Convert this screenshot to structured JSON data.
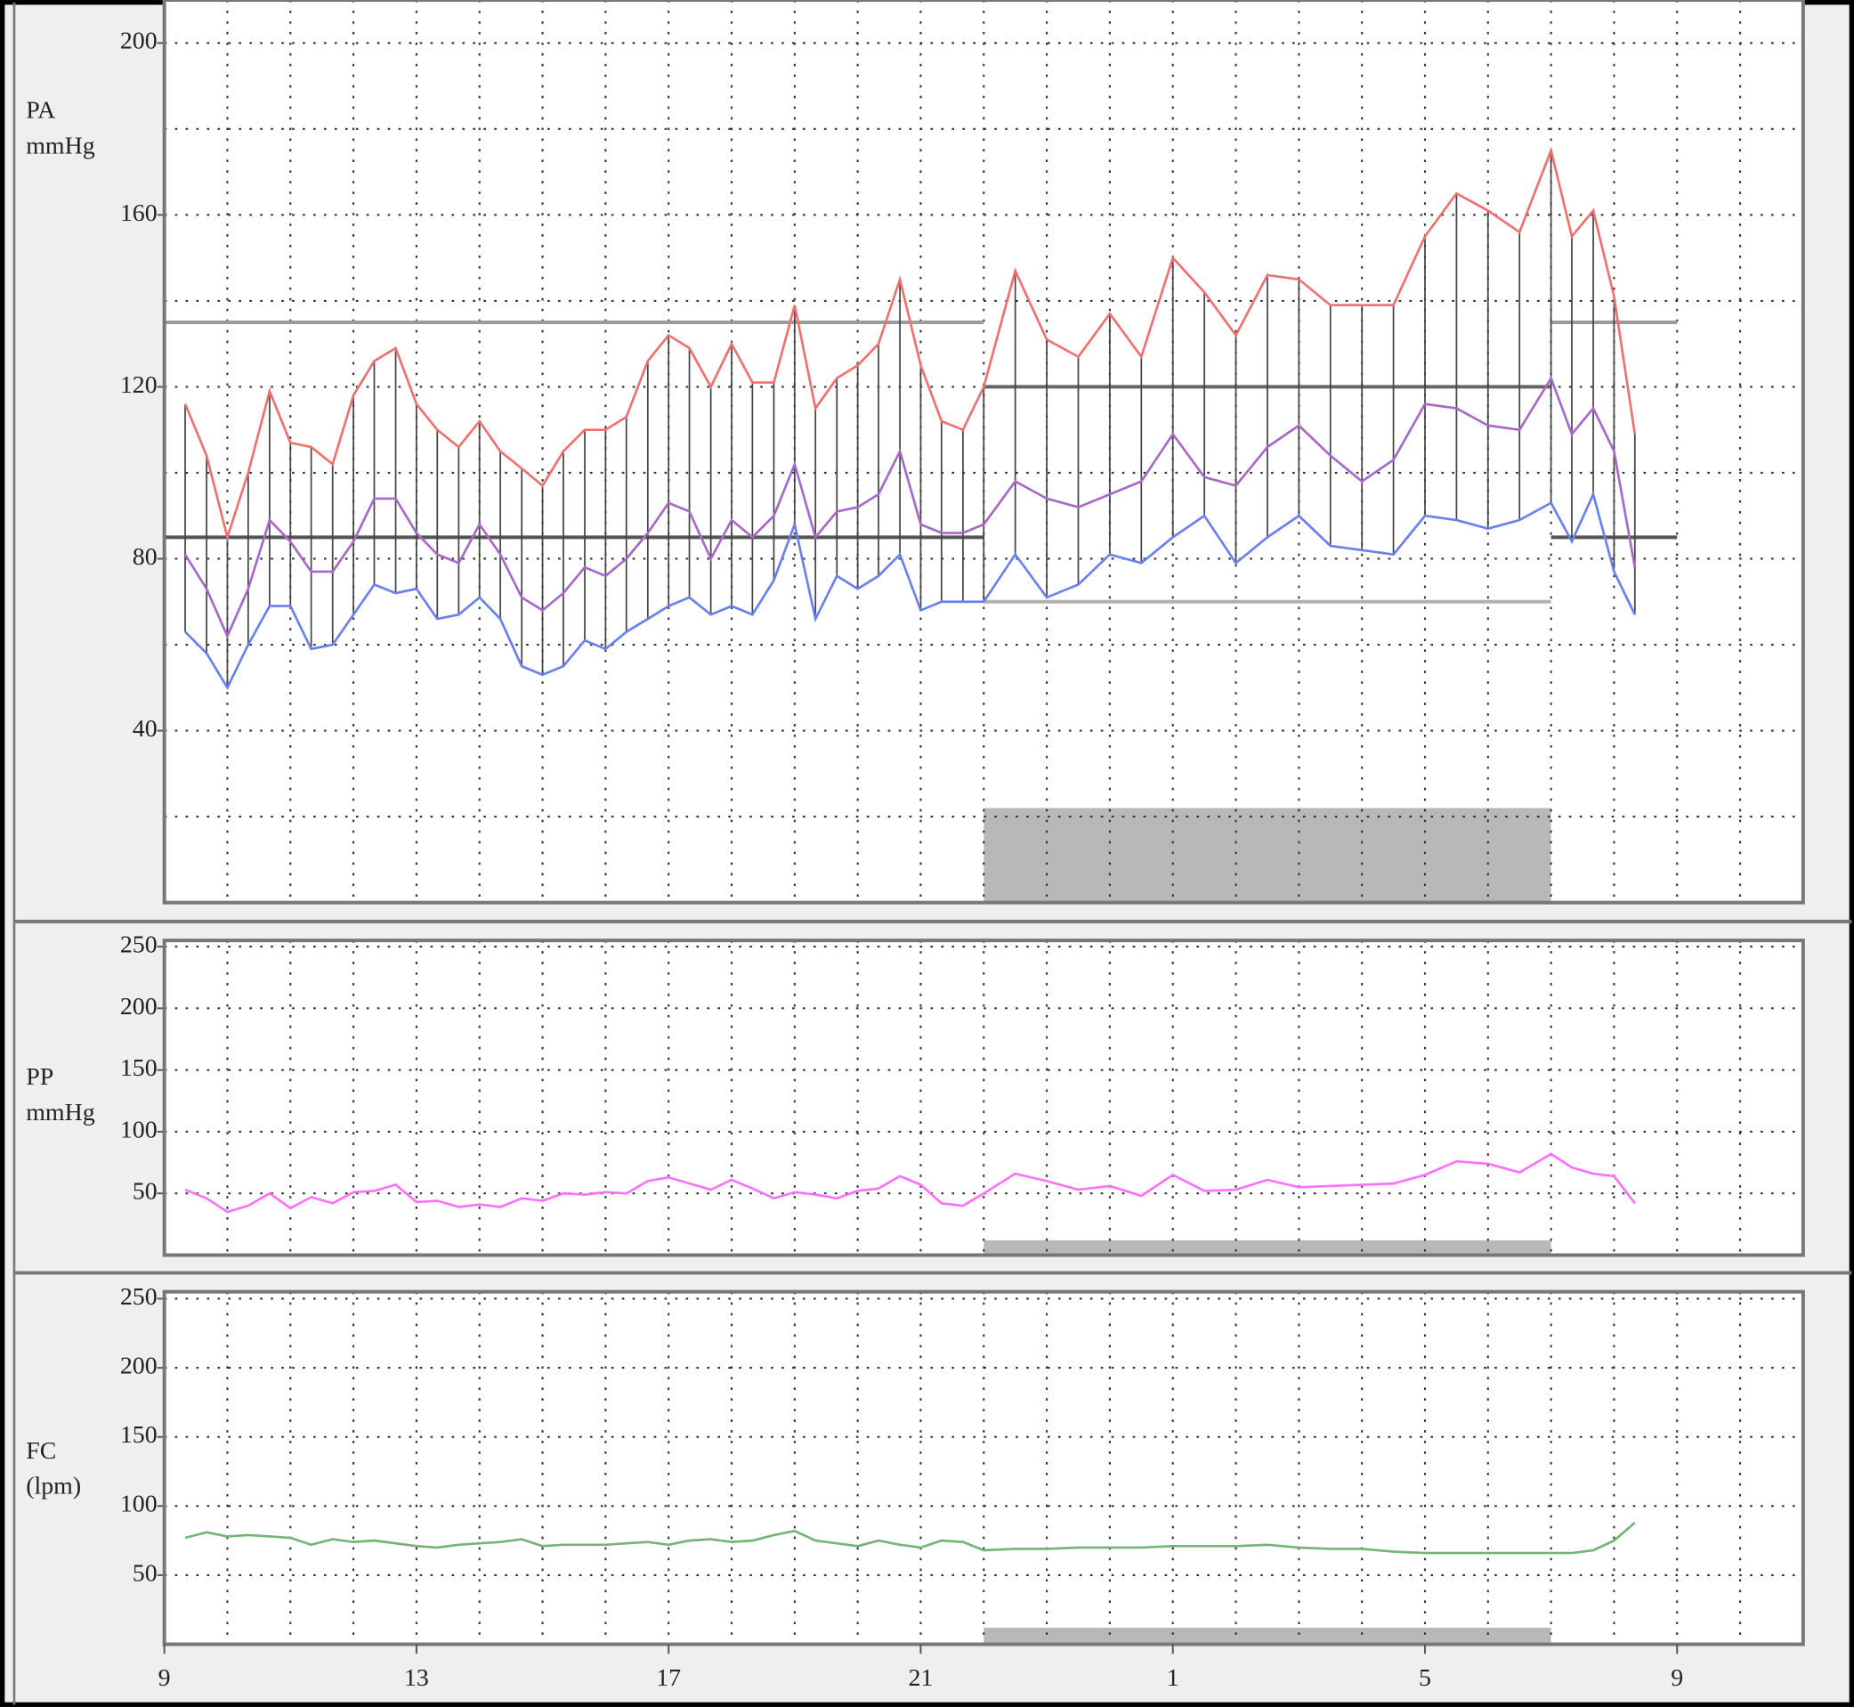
{
  "chart_data": [
    {
      "type": "line",
      "ylabel": [
        "PA",
        "mmHg"
      ],
      "xlim": [
        9,
        35
      ],
      "x": [
        9.33,
        9.67,
        10,
        10.33,
        10.67,
        11,
        11.33,
        11.67,
        12,
        12.33,
        12.67,
        13,
        13.33,
        13.67,
        14,
        14.33,
        14.67,
        15,
        15.33,
        15.67,
        16,
        16.33,
        16.67,
        17,
        17.33,
        17.67,
        18,
        18.33,
        18.67,
        19,
        19.33,
        19.67,
        20,
        20.33,
        20.67,
        21,
        21.33,
        21.67,
        22,
        22.5,
        23,
        23.5,
        24,
        24.5,
        25,
        25.5,
        26,
        26.5,
        27,
        27.5,
        28,
        28.5,
        29,
        29.5,
        30,
        30.5,
        31,
        31.33,
        31.67,
        32,
        32.33
      ],
      "ylim": [
        0,
        210
      ],
      "yticks": [
        40,
        80,
        120,
        160,
        200
      ],
      "y_grid": [
        20,
        40,
        60,
        80,
        100,
        120,
        140,
        160,
        180,
        200
      ],
      "range_bars": true,
      "range_color": "#444444",
      "thresholds": [
        {
          "x": [
            9,
            22
          ],
          "values": [
            135,
            85
          ],
          "colors": [
            "#9a9a9a",
            "#555555"
          ]
        },
        {
          "x": [
            22,
            31
          ],
          "values": [
            120,
            70
          ],
          "colors": [
            "#666666",
            "#b0b0b0"
          ]
        },
        {
          "x": [
            31,
            33
          ],
          "values": [
            135,
            85
          ],
          "colors": [
            "#9a9a9a",
            "#555555"
          ]
        }
      ],
      "shade": {
        "x": [
          22,
          31
        ],
        "top": 22,
        "color": "#b8b8b8"
      },
      "series": [
        {
          "color": "#f07070",
          "values": [
            116,
            104,
            85,
            100,
            119,
            107,
            106,
            102,
            118,
            126,
            129,
            116,
            110,
            106,
            112,
            105,
            101,
            97,
            105,
            110,
            110,
            113,
            126,
            132,
            129,
            120,
            130,
            121,
            121,
            139,
            115,
            122,
            125,
            130,
            145,
            125,
            112,
            110,
            120,
            147,
            131,
            127,
            137,
            127,
            150,
            142,
            132,
            146,
            145,
            139,
            139,
            139,
            155,
            165,
            161,
            156,
            175,
            155,
            161,
            141,
            109
          ]
        },
        {
          "color": "#a868c8",
          "values": [
            81,
            73,
            62,
            73,
            89,
            84,
            77,
            77,
            84,
            94,
            94,
            86,
            81,
            79,
            88,
            81,
            71,
            68,
            72,
            78,
            76,
            80,
            86,
            93,
            91,
            80,
            89,
            85,
            90,
            102,
            85,
            91,
            92,
            95,
            105,
            88,
            86,
            86,
            88,
            98,
            94,
            92,
            95,
            98,
            109,
            99,
            97,
            106,
            111,
            104,
            98,
            103,
            116,
            115,
            111,
            110,
            122,
            109,
            115,
            105,
            78
          ]
        },
        {
          "color": "#6a80f0",
          "values": [
            63,
            58,
            50,
            60,
            69,
            69,
            59,
            60,
            67,
            74,
            72,
            73,
            66,
            67,
            71,
            66,
            55,
            53,
            55,
            61,
            59,
            63,
            66,
            69,
            71,
            67,
            69,
            67,
            75,
            88,
            66,
            76,
            73,
            76,
            81,
            68,
            70,
            70,
            70,
            81,
            71,
            74,
            81,
            79,
            85,
            90,
            79,
            85,
            90,
            83,
            82,
            81,
            90,
            89,
            87,
            89,
            93,
            84,
            95,
            77,
            67
          ]
        }
      ]
    },
    {
      "type": "line",
      "ylabel": [
        "PP",
        "mmHg"
      ],
      "ylim": [
        0,
        255
      ],
      "yticks": [
        50,
        100,
        150,
        200,
        250
      ],
      "y_grid": [
        50,
        100,
        150,
        200,
        250
      ],
      "shade": {
        "x": [
          22,
          31
        ],
        "top": 12,
        "color": "#b8b8b8"
      },
      "series": [
        {
          "color": "#ff70ff",
          "values": [
            53,
            46,
            35,
            40,
            50,
            38,
            47,
            42,
            51,
            52,
            57,
            43,
            44,
            39,
            41,
            39,
            46,
            44,
            50,
            49,
            51,
            50,
            60,
            63,
            58,
            53,
            61,
            54,
            46,
            51,
            49,
            46,
            52,
            54,
            64,
            57,
            42,
            40,
            50,
            66,
            60,
            53,
            56,
            48,
            65,
            52,
            53,
            61,
            55,
            56,
            57,
            58,
            65,
            76,
            74,
            67,
            82,
            71,
            66,
            64,
            42
          ]
        }
      ]
    },
    {
      "type": "line",
      "ylabel": [
        "FC",
        "(lpm)"
      ],
      "ylim": [
        0,
        255
      ],
      "yticks": [
        50,
        100,
        150,
        200,
        250
      ],
      "y_grid": [
        50,
        100,
        150,
        200,
        250
      ],
      "shade": {
        "x": [
          22,
          31
        ],
        "top": 12,
        "color": "#b8b8b8"
      },
      "xticks": [
        9,
        13,
        17,
        21,
        {
          "value": 25,
          "label": "1"
        },
        {
          "value": 29,
          "label": "5"
        },
        {
          "value": 33,
          "label": "9"
        }
      ],
      "x_grid": [
        10,
        11,
        12,
        13,
        14,
        15,
        16,
        17,
        18,
        19,
        20,
        21,
        22,
        23,
        24,
        25,
        26,
        27,
        28,
        29,
        30,
        31,
        32,
        33,
        34
      ],
      "series": [
        {
          "color": "#74b474",
          "values": [
            77,
            81,
            78,
            79,
            78,
            77,
            72,
            76,
            74,
            75,
            73,
            71,
            70,
            72,
            73,
            74,
            76,
            71,
            72,
            72,
            72,
            73,
            74,
            72,
            75,
            76,
            74,
            75,
            79,
            82,
            75,
            73,
            71,
            75,
            72,
            70,
            75,
            74,
            68,
            69,
            69,
            70,
            70,
            70,
            71,
            71,
            71,
            72,
            70,
            69,
            69,
            67,
            66,
            66,
            66,
            66,
            66,
            66,
            68,
            75,
            88
          ]
        }
      ]
    }
  ]
}
